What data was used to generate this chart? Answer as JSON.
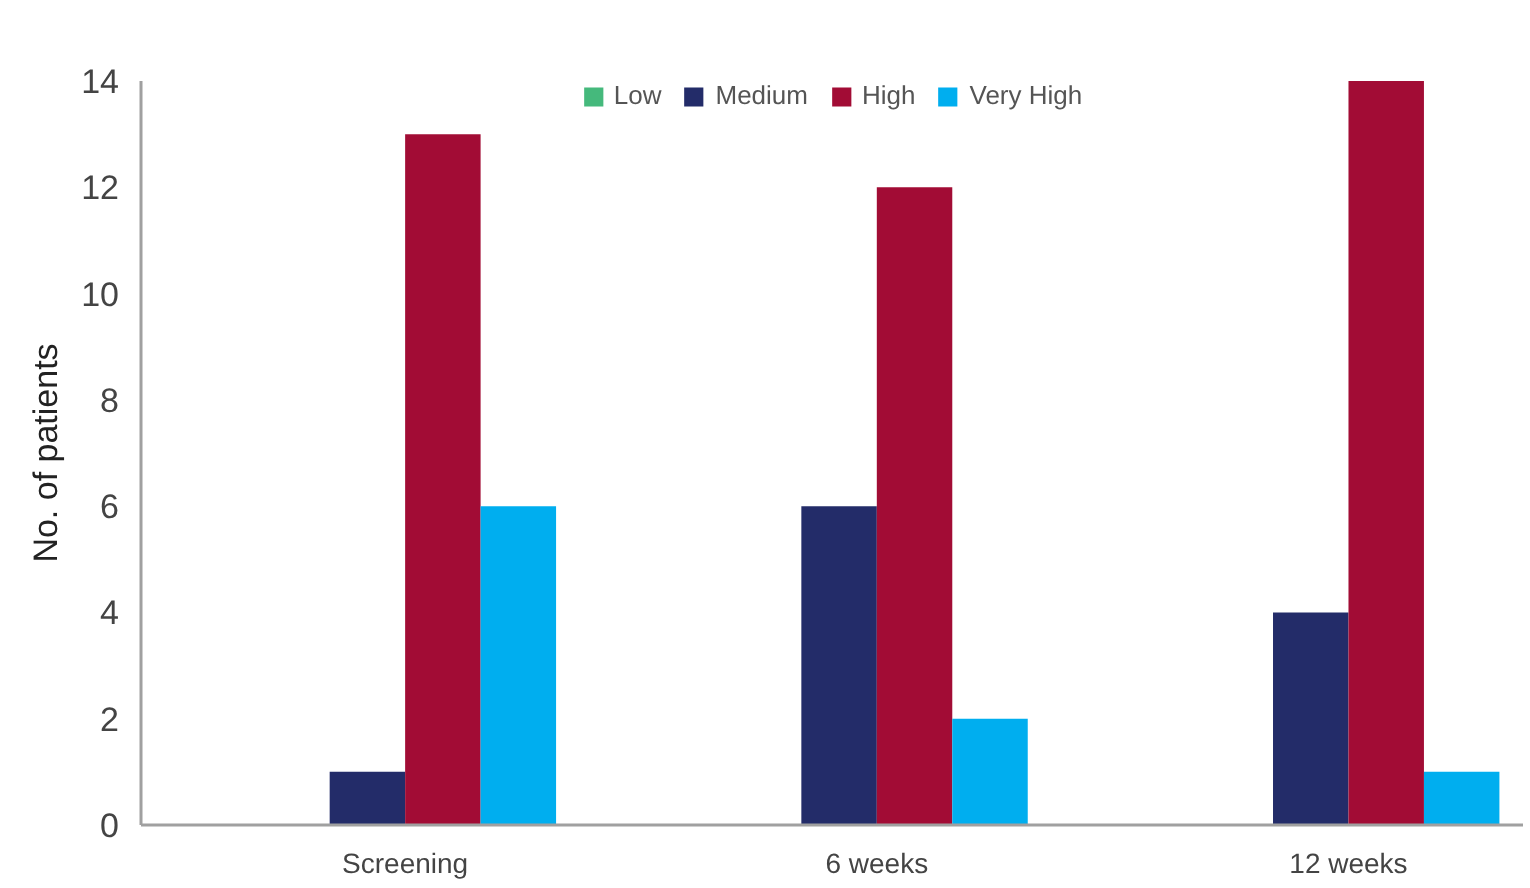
{
  "chart_data": {
    "type": "bar",
    "ylabel": "No. of patients",
    "categories": [
      "Screening",
      "6 weeks",
      "12 weeks"
    ],
    "series": [
      {
        "name": "Low",
        "color": "#45b97c",
        "values": [
          0,
          0,
          0
        ]
      },
      {
        "name": "Medium",
        "color": "#232c69",
        "values": [
          1,
          6,
          4
        ]
      },
      {
        "name": "High",
        "color": "#a20c35",
        "values": [
          13,
          12,
          14
        ]
      },
      {
        "name": "Very High",
        "color": "#00aeef",
        "values": [
          6,
          2,
          1
        ]
      }
    ],
    "ylim": [
      0,
      14
    ],
    "yticks": [
      0,
      2,
      4,
      6,
      8,
      10,
      12,
      14
    ],
    "grid": false,
    "legend": "top"
  }
}
